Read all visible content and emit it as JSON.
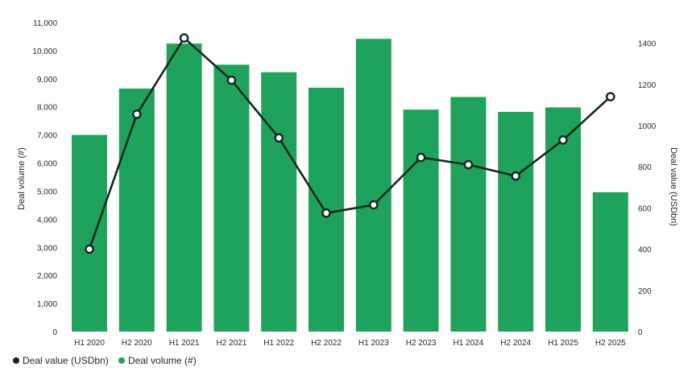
{
  "chart_data": {
    "type": "bar",
    "categories": [
      "H1 2020",
      "H2 2020",
      "H1 2021",
      "H2 2021",
      "H1 2022",
      "H2 2022",
      "H1 2023",
      "H2 2023",
      "H1 2024",
      "H2 2024",
      "H1 2025",
      "H2 2025"
    ],
    "series": [
      {
        "name": "Deal volume (#)",
        "type": "bar",
        "axis": "left",
        "color": "#1fa35c",
        "values": [
          7000,
          8650,
          10250,
          9500,
          9230,
          8680,
          10420,
          7900,
          8350,
          7820,
          7980,
          4960
        ]
      },
      {
        "name": "Deal value (USDbn)",
        "type": "line",
        "axis": "right",
        "color": "#0e2a1f",
        "values": [
          400,
          1055,
          1425,
          1220,
          940,
          575,
          615,
          845,
          810,
          755,
          930,
          1140
        ]
      }
    ],
    "ylabel_left": "Deal volume (#)",
    "ylabel_right": "Deal value (USDbn)",
    "ylim_left": [
      0,
      11000
    ],
    "ylim_right": [
      0,
      1500
    ],
    "yticks_left": [
      "0",
      "1,000",
      "2,000",
      "3,000",
      "4,000",
      "5,000",
      "6,000",
      "7,000",
      "8,000",
      "9,000",
      "10,000",
      "11,000"
    ],
    "yticks_right": [
      "0",
      "200",
      "400",
      "600",
      "800",
      "1000",
      "1200",
      "1400"
    ],
    "grid": false,
    "legend_position": "bottom-left",
    "legend": [
      {
        "label": "Deal value (USDbn)",
        "color": "#0e2a1f"
      },
      {
        "label": "Deal volume (#)",
        "color": "#1fa35c"
      }
    ]
  }
}
